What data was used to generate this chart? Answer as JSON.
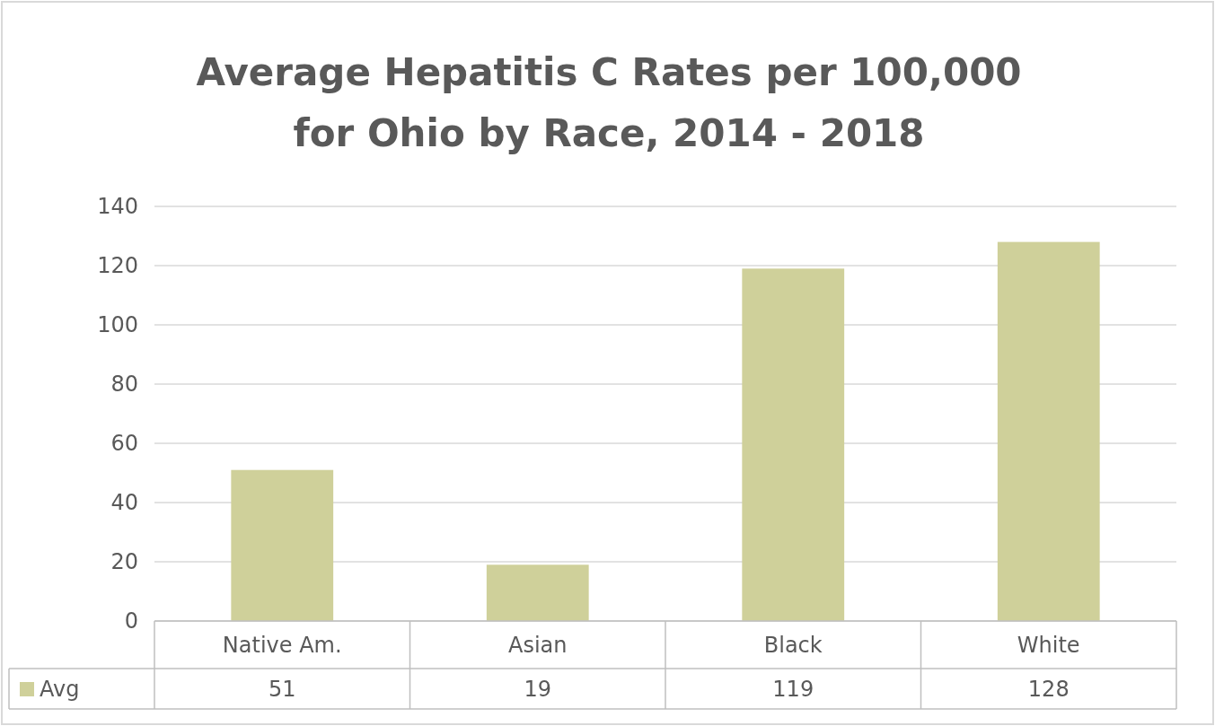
{
  "chart_data": {
    "type": "bar",
    "title": "Average Hepatitis C Rates per 100,000\nfor Ohio by Race, 2014 - 2018",
    "categories": [
      "Native Am.",
      "Asian",
      "Black",
      "White"
    ],
    "series": [
      {
        "name": "Avg",
        "color": "#cfd09a",
        "values": [
          51,
          19,
          119,
          128
        ]
      }
    ],
    "ylim": [
      0,
      140
    ],
    "yticks": [
      0,
      20,
      40,
      60,
      80,
      100,
      120,
      140
    ],
    "grid": "y",
    "legend": "bottom",
    "data_labels": true
  }
}
